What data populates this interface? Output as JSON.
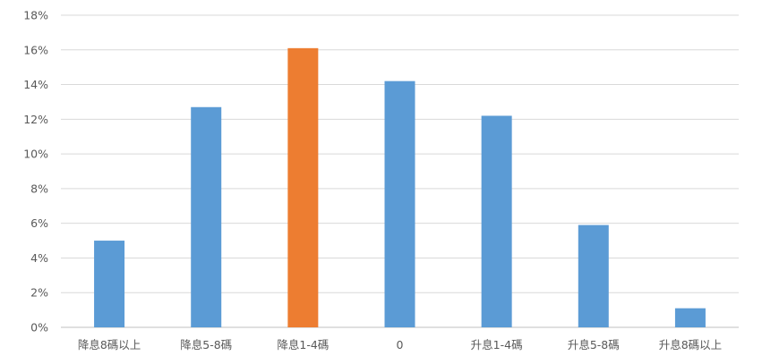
{
  "chart_data": {
    "type": "bar",
    "title": "",
    "xlabel": "",
    "ylabel": "",
    "categories": [
      "降息8碼以上",
      "降息5-8碼",
      "降息1-4碼",
      "0",
      "升息1-4碼",
      "升息5-8碼",
      "升息8碼以上"
    ],
    "values": [
      5.0,
      12.7,
      16.1,
      14.2,
      12.2,
      5.9,
      1.1
    ],
    "highlight_index": 2,
    "ylim": [
      0,
      18
    ],
    "yticks": [
      0,
      2,
      4,
      6,
      8,
      10,
      12,
      14,
      16,
      18
    ],
    "ytick_format": "%",
    "grid": true,
    "legend": "none",
    "colors": {
      "bar": "#5B9BD5",
      "highlight": "#ED7D31",
      "grid": "#D9D9D9",
      "axis": "#BFBFBF",
      "text": "#595959"
    }
  }
}
